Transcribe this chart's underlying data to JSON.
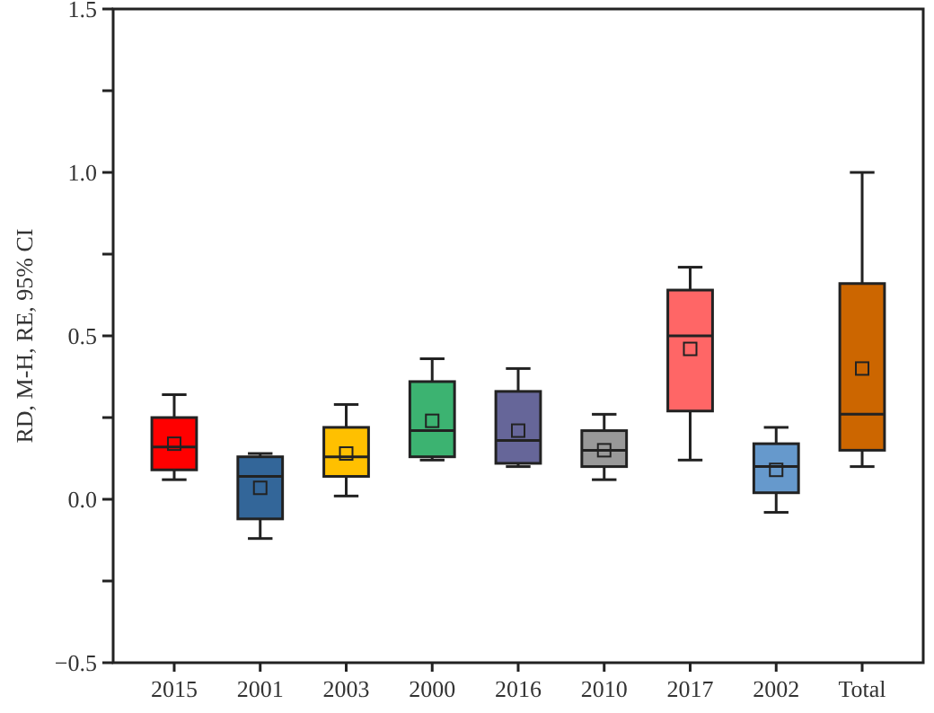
{
  "chart_data": {
    "type": "box",
    "ylabel": "RD, M-H, RE, 95% CI",
    "categories": [
      "2015",
      "2001",
      "2003",
      "2000",
      "2016",
      "2010",
      "2017",
      "2002",
      "Total"
    ],
    "colors": [
      "#ff0000",
      "#336699",
      "#ffc000",
      "#3cb371",
      "#666699",
      "#999999",
      "#ff6666",
      "#6699cc",
      "#cc6600"
    ],
    "boxes": [
      {
        "low": 0.06,
        "q1": 0.09,
        "median": 0.16,
        "q3": 0.25,
        "high": 0.32,
        "mean": 0.17
      },
      {
        "low": -0.12,
        "q1": -0.06,
        "median": 0.07,
        "q3": 0.13,
        "high": 0.14,
        "mean": 0.035
      },
      {
        "low": 0.01,
        "q1": 0.07,
        "median": 0.13,
        "q3": 0.22,
        "high": 0.29,
        "mean": 0.14
      },
      {
        "low": 0.12,
        "q1": 0.13,
        "median": 0.21,
        "q3": 0.36,
        "high": 0.43,
        "mean": 0.24
      },
      {
        "low": 0.1,
        "q1": 0.11,
        "median": 0.18,
        "q3": 0.33,
        "high": 0.4,
        "mean": 0.21
      },
      {
        "low": 0.06,
        "q1": 0.1,
        "median": 0.15,
        "q3": 0.21,
        "high": 0.26,
        "mean": 0.15
      },
      {
        "low": 0.12,
        "q1": 0.27,
        "median": 0.5,
        "q3": 0.64,
        "high": 0.71,
        "mean": 0.46
      },
      {
        "low": -0.04,
        "q1": 0.02,
        "median": 0.1,
        "q3": 0.17,
        "high": 0.22,
        "mean": 0.09
      },
      {
        "low": 0.1,
        "q1": 0.15,
        "median": 0.26,
        "q3": 0.66,
        "high": 1.0,
        "mean": 0.4
      }
    ],
    "ylim": [
      -0.5,
      1.5
    ],
    "yticks": [
      {
        "value": -0.5,
        "label": "−0.5"
      },
      {
        "value": -0.25,
        "label": null
      },
      {
        "value": 0,
        "label": "0.0"
      },
      {
        "value": 0.25,
        "label": null
      },
      {
        "value": 0.5,
        "label": "0.5"
      },
      {
        "value": 0.75,
        "label": null
      },
      {
        "value": 1,
        "label": "1.0"
      },
      {
        "value": 1.25,
        "label": null
      },
      {
        "value": 1.5,
        "label": "1.5"
      }
    ],
    "grid": false,
    "marker": "square"
  }
}
